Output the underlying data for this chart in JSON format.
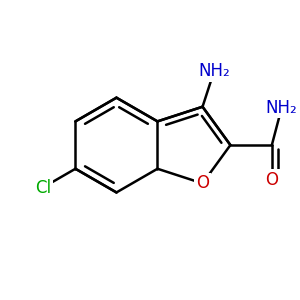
{
  "background_color": "#ffffff",
  "bond_color": "#000000",
  "bond_width": 1.8,
  "atom_colors": {
    "C": "#000000",
    "N": "#0000cc",
    "O": "#cc0000",
    "Cl": "#00aa00"
  },
  "font_size": 12
}
